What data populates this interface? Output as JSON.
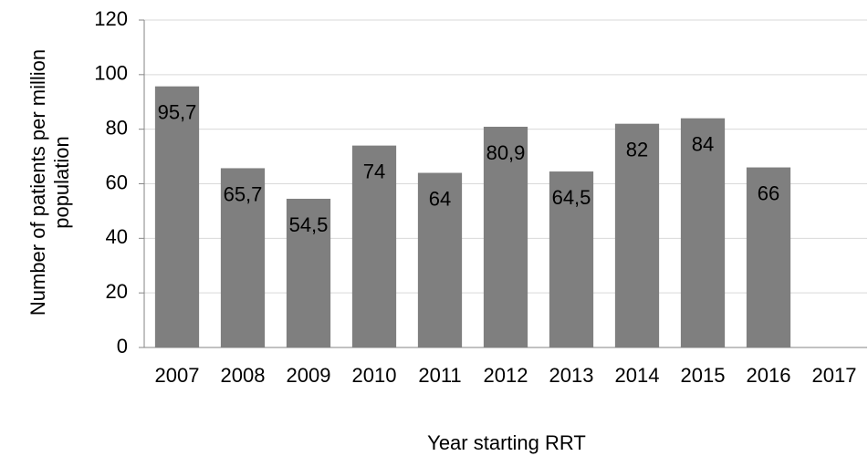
{
  "chart_data": {
    "type": "bar",
    "x_label": "Year starting RRT",
    "y_label": "Number of patients per million population",
    "categories": [
      "2007",
      "2008",
      "2009",
      "2010",
      "2011",
      "2012",
      "2013",
      "2014",
      "2015",
      "2016",
      "2017"
    ],
    "values": [
      95.7,
      65.7,
      54.5,
      74,
      64,
      80.9,
      64.5,
      82,
      84,
      66,
      null
    ],
    "value_labels": [
      "95,7",
      "65,7",
      "54,5",
      "74",
      "64",
      "80,9",
      "64,5",
      "82",
      "84",
      "66",
      null
    ],
    "color": "#7f7f7f",
    "ylim": [
      0,
      120
    ],
    "yticks": [
      0,
      20,
      40,
      60,
      80,
      100,
      120
    ],
    "grid": true
  }
}
